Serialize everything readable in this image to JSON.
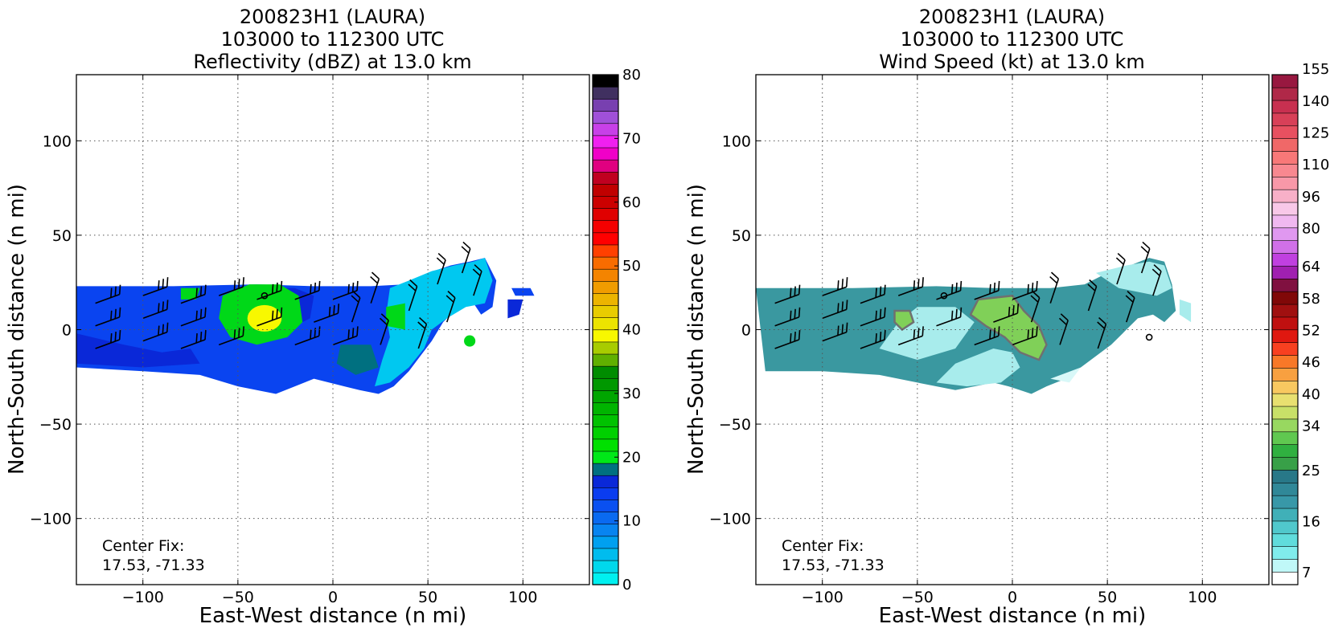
{
  "chart_data": [
    {
      "type": "heatmap",
      "id": "reflectivity",
      "title": [
        "200823H1 (LAURA)",
        "103000 to 112300 UTC",
        "Reflectivity (dBZ) at 13.0 km"
      ],
      "xlabel": "East-West distance (n mi)",
      "ylabel": "North-South distance (n mi)",
      "xlim": [
        -135,
        135
      ],
      "ylim": [
        -135,
        135
      ],
      "xticks": [
        -100,
        -50,
        0,
        50,
        100
      ],
      "yticks": [
        -100,
        -50,
        0,
        50,
        100
      ],
      "grid": true,
      "annotation": [
        "Center Fix:",
        "17.53, -71.33"
      ],
      "colorbar": {
        "levels": [
          0,
          2,
          4,
          6,
          8,
          10,
          12,
          14,
          16,
          18,
          20,
          22,
          24,
          26,
          28,
          30,
          32,
          34,
          36,
          38,
          40,
          42,
          44,
          46,
          48,
          50,
          52,
          54,
          56,
          58,
          60,
          62,
          64,
          66,
          68,
          70,
          72,
          74,
          76,
          78,
          80
        ],
        "labels": [
          "0",
          "10",
          "20",
          "30",
          "40",
          "50",
          "60",
          "70",
          "80"
        ],
        "label_values": [
          0,
          10,
          20,
          30,
          40,
          50,
          60,
          70,
          80
        ],
        "colors": [
          "#00f0f0",
          "#00d8ec",
          "#00bcee",
          "#00a0f0",
          "#0884f0",
          "#0a6af0",
          "#0a50f0",
          "#0a3cf0",
          "#0a28d8",
          "#007080",
          "#00e818",
          "#00e000",
          "#00d000",
          "#00c200",
          "#00b400",
          "#00a600",
          "#009800",
          "#008c00",
          "#60b000",
          "#a8cc00",
          "#f8f800",
          "#ece400",
          "#e8cc00",
          "#ecb400",
          "#f09c00",
          "#f48400",
          "#f86c00",
          "#ff4000",
          "#ff0000",
          "#f40000",
          "#e00000",
          "#cc0000",
          "#c00000",
          "#c00020",
          "#e00080",
          "#f000c8",
          "#f020f0",
          "#c840e8",
          "#a050d8",
          "#7840b0",
          "#403060",
          "#000000"
        ]
      },
      "palette": {
        "low_blue": "#0a44f0",
        "mid_blue": "#0a28d8",
        "cyan": "#00c8f0",
        "teal": "#007080",
        "green": "#00d818",
        "yellow": "#f8f800"
      }
    },
    {
      "type": "heatmap",
      "id": "wind_speed",
      "title": [
        "200823H1 (LAURA)",
        "103000 to 112300 UTC",
        "Wind Speed (kt) at 13.0 km"
      ],
      "xlabel": "East-West distance (n mi)",
      "ylabel": "North-South distance (n mi)",
      "xlim": [
        -135,
        135
      ],
      "ylim": [
        -135,
        135
      ],
      "xticks": [
        -100,
        -50,
        0,
        50,
        100
      ],
      "yticks": [
        -100,
        -50,
        0,
        50,
        100
      ],
      "grid": true,
      "annotation": [
        "Center Fix:",
        "17.53, -71.33"
      ],
      "colorbar": {
        "labels": [
          "7",
          "16",
          "25",
          "34",
          "40",
          "46",
          "52",
          "58",
          "64",
          "80",
          "96",
          "110",
          "125",
          "140",
          "155"
        ],
        "label_values": [
          7,
          16,
          25,
          34,
          40,
          46,
          52,
          58,
          64,
          80,
          96,
          110,
          125,
          140,
          155
        ],
        "colors": [
          "#ffffff",
          "#c0f8f8",
          "#80ecec",
          "#60dcdc",
          "#50c8cc",
          "#40b0b8",
          "#3898a8",
          "#308898",
          "#287888",
          "#38a048",
          "#30b040",
          "#60c850",
          "#98d860",
          "#c8e068",
          "#e8e070",
          "#f8c860",
          "#f8a040",
          "#f87828",
          "#f84020",
          "#e01810",
          "#c01010",
          "#a01010",
          "#800808",
          "#801040",
          "#a020b0",
          "#c040e0",
          "#d070e8",
          "#e098f0",
          "#f0b8f0",
          "#f8c8e8",
          "#f8b0c8",
          "#f898a8",
          "#f88890",
          "#f87878",
          "#f06868",
          "#e85060",
          "#d84058",
          "#c83050",
          "#b02848",
          "#981840"
        ]
      },
      "palette": {
        "teal": "#3a98a0",
        "dark_teal": "#2a8088",
        "light": "#a8ecec",
        "pale": "#d8f8f8",
        "green": "#80d058",
        "contour": "#707070"
      }
    }
  ]
}
